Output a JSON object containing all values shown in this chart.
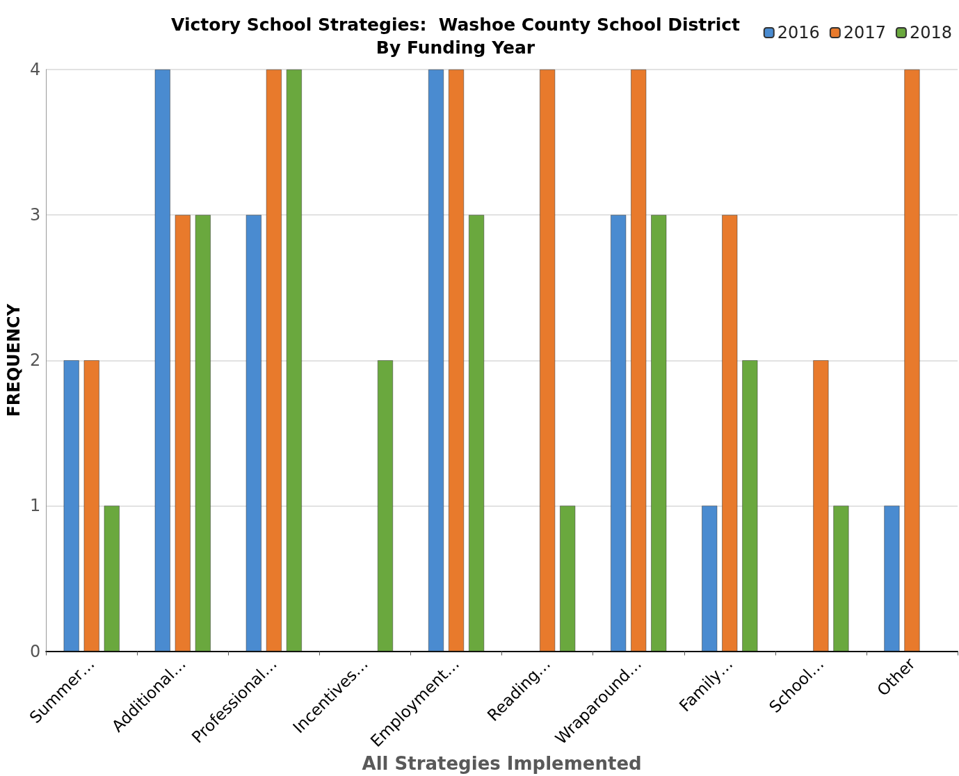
{
  "chart_data": {
    "type": "bar",
    "title": "Victory School Strategies:  Washoe County School District",
    "subtitle": "By Funding Year",
    "xlabel": "All Strategies Implemented",
    "ylabel": "FREQUENCY",
    "categories": [
      "Summer…",
      "Additional…",
      "Professional…",
      "Incentives…",
      "Employment…",
      "Reading…",
      "Wraparound…",
      "Family…",
      "School…",
      "Other"
    ],
    "series": [
      {
        "name": "2016",
        "color": "#4a8bd0",
        "values": [
          2,
          4,
          3,
          null,
          4,
          null,
          3,
          1,
          null,
          1
        ]
      },
      {
        "name": "2017",
        "color": "#e87a2c",
        "values": [
          2,
          3,
          4,
          null,
          4,
          4,
          4,
          3,
          2,
          4
        ]
      },
      {
        "name": "2018",
        "color": "#6aa83e",
        "values": [
          1,
          3,
          4,
          2,
          3,
          1,
          3,
          2,
          1,
          null
        ]
      }
    ],
    "ylim": [
      0,
      4
    ],
    "yticks": [
      0,
      1,
      2,
      3,
      4
    ],
    "grid": "y",
    "legend": "top right"
  }
}
